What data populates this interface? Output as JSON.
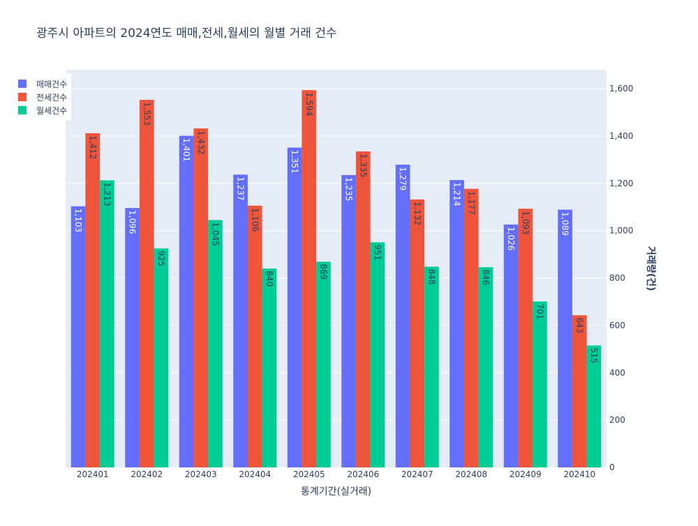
{
  "chart_data": {
    "type": "bar",
    "title": "광주시 아파트의 2024연도 매매,전세,월세의 월별 거래 건수",
    "xlabel": "통계기간(실거래)",
    "ylabel": "거래량(건)",
    "categories": [
      "202401",
      "202402",
      "202403",
      "202404",
      "202405",
      "202406",
      "202407",
      "202408",
      "202409",
      "202410"
    ],
    "series": [
      {
        "name": "매매건수",
        "color": "#636efa",
        "values": [
          1103,
          1096,
          1401,
          1237,
          1351,
          1235,
          1279,
          1214,
          1026,
          1089
        ]
      },
      {
        "name": "전세건수",
        "color": "#ef553b",
        "values": [
          1412,
          1553,
          1432,
          1106,
          1594,
          1335,
          1132,
          1177,
          1093,
          643
        ]
      },
      {
        "name": "월세건수",
        "color": "#00cc96",
        "values": [
          1213,
          925,
          1045,
          840,
          869,
          951,
          848,
          846,
          701,
          515
        ]
      }
    ],
    "ylim": [
      0,
      1680
    ],
    "yticks": [
      0,
      200,
      400,
      600,
      800,
      1000,
      1200,
      1400,
      1600
    ],
    "y_axis_side": "right",
    "grid": true,
    "legend_position": "top-left",
    "colors": {
      "plot_bg": "#e5ecf6",
      "grid": "#ffffff",
      "text": "#2a3f5f"
    }
  }
}
